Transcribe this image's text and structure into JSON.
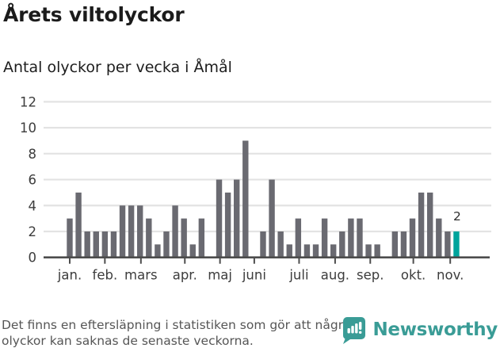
{
  "header": {
    "title": "Årets viltolyckor",
    "subtitle": "Antal olyckor per vecka i Åmål"
  },
  "chart_data": {
    "type": "bar",
    "title": "Årets viltolyckor",
    "subtitle": "Antal olyckor per vecka i Åmål",
    "x_unit": "vecka",
    "values": [
      3,
      5,
      2,
      2,
      2,
      2,
      4,
      4,
      4,
      3,
      1,
      2,
      4,
      3,
      1,
      3,
      0,
      6,
      5,
      6,
      9,
      0,
      2,
      6,
      2,
      1,
      3,
      1,
      1,
      3,
      1,
      2,
      3,
      3,
      1,
      1,
      0,
      2,
      2,
      3,
      5,
      5,
      3,
      2,
      2
    ],
    "highlight_last": true,
    "last_value_label": "2",
    "ylim": [
      0,
      12
    ],
    "yticks": [
      0,
      2,
      4,
      6,
      8,
      10,
      12
    ],
    "grid": true,
    "month_ticks": [
      {
        "label": "jan.",
        "week": 1
      },
      {
        "label": "feb.",
        "week": 5
      },
      {
        "label": "mars",
        "week": 9.1
      },
      {
        "label": "apr.",
        "week": 14.1
      },
      {
        "label": "maj",
        "week": 18.1
      },
      {
        "label": "juni",
        "week": 22
      },
      {
        "label": "juli",
        "week": 27.1
      },
      {
        "label": "aug.",
        "week": 31.2
      },
      {
        "label": "sep.",
        "week": 35.2
      },
      {
        "label": "okt.",
        "week": 40.1
      },
      {
        "label": "nov.",
        "week": 44.3
      }
    ],
    "colors": {
      "bar": "#6a6a71",
      "highlight": "#00a49c",
      "grid": "#e3e3e3",
      "axis": "#4d4d4d",
      "tick_text": "#3d3d3d",
      "annotation": "#2e2e2e"
    }
  },
  "footer": {
    "note": "Det finns en eftersläpning i statistiken som gör att några olyckor kan saknas de senaste veckorna.",
    "brand": "Newsworthy"
  },
  "brand_colors": {
    "logo": "#3a9c96"
  }
}
